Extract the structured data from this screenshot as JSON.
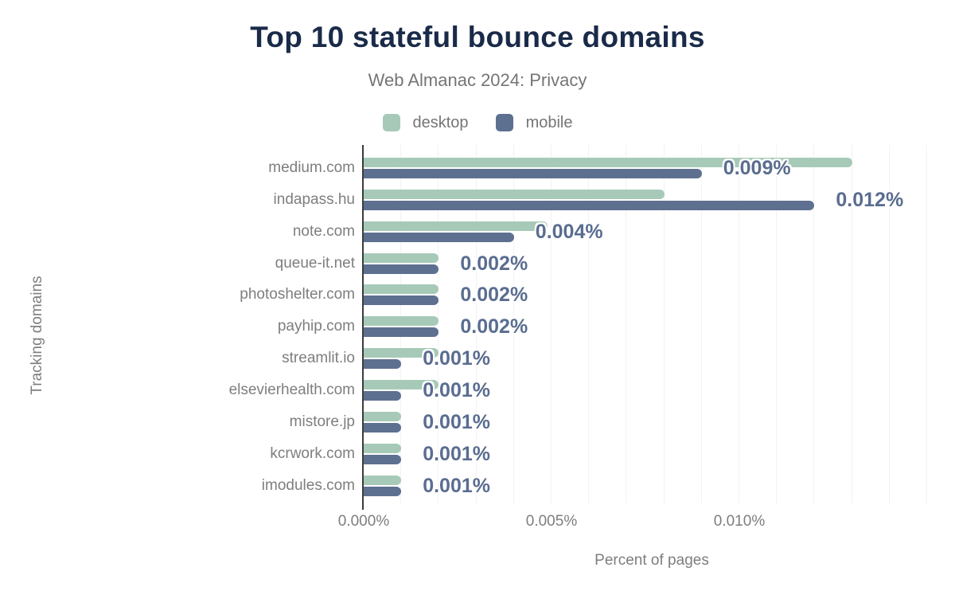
{
  "title": "Top 10 stateful bounce domains",
  "subtitle": "Web Almanac 2024: Privacy",
  "colors": {
    "title": "#1a2b49",
    "desktop": "#a7cab8",
    "mobile": "#5e7090",
    "data_label": "#5a6d90",
    "axis_text": "#7e7e7e",
    "gridline": "#f2f2f3",
    "axis_line": "#3c3c3c"
  },
  "legend": {
    "items": [
      {
        "label": "desktop"
      },
      {
        "label": "mobile"
      }
    ]
  },
  "chart_data": {
    "type": "bar",
    "orientation": "horizontal",
    "title": "Top 10 stateful bounce domains",
    "subtitle": "Web Almanac 2024: Privacy",
    "xlabel": "Percent of pages",
    "ylabel": "Tracking domains",
    "legend_position": "top",
    "grid": true,
    "grid_step": 0.001,
    "xlim": [
      0,
      0.01534
    ],
    "categories": [
      "medium.com",
      "indapass.hu",
      "note.com",
      "queue-it.net",
      "photoshelter.com",
      "payhip.com",
      "streamlit.io",
      "elsevierhealth.com",
      "mistore.jp",
      "kcrwork.com",
      "imodules.com"
    ],
    "series": [
      {
        "name": "desktop",
        "color": "#a7cab8",
        "values": [
          0.013,
          0.008,
          0.0049,
          0.002,
          0.002,
          0.002,
          0.002,
          0.002,
          0.001,
          0.001,
          0.001
        ]
      },
      {
        "name": "mobile",
        "color": "#5e7090",
        "values": [
          0.009,
          0.012,
          0.004,
          0.002,
          0.002,
          0.002,
          0.001,
          0.001,
          0.001,
          0.001,
          0.001
        ]
      }
    ],
    "data_labels": [
      "0.009%",
      "0.012%",
      "0.004%",
      "0.002%",
      "0.002%",
      "0.002%",
      "0.001%",
      "0.001%",
      "0.001%",
      "0.001%",
      "0.001%"
    ],
    "x_ticks": [
      {
        "label": "0.000%",
        "value": 0
      },
      {
        "label": "0.005%",
        "value": 0.005
      },
      {
        "label": "0.010%",
        "value": 0.01
      }
    ]
  }
}
